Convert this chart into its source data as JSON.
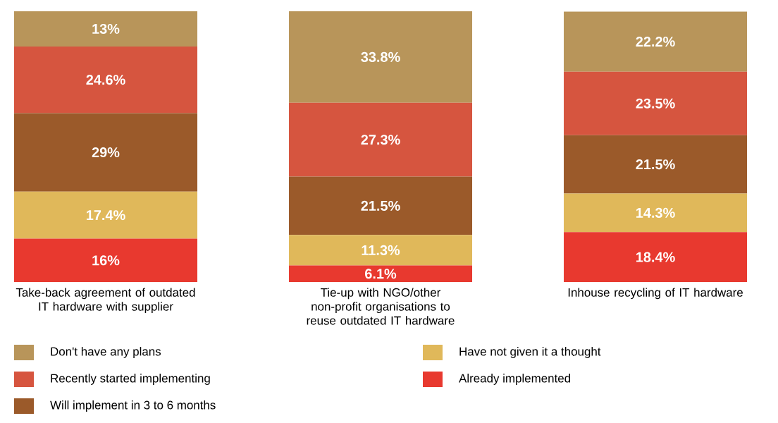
{
  "chart_data": {
    "type": "bar",
    "stacked": true,
    "categories": [
      "Take-back agreement of outdated IT hardware with supplier",
      "Tie-up with NGO/other non-profit organisations to reuse outdated IT hardware",
      "Inhouse recycling of IT hardware"
    ],
    "ylim": [
      0,
      100
    ],
    "legend": "bottom",
    "series": [
      {
        "name": "Already implemented",
        "color": "#e8392f",
        "values": [
          16,
          6.1,
          18.4
        ],
        "value_labels": [
          "16%",
          "6.1%",
          "18.4%"
        ]
      },
      {
        "name": "Have not given it a thought",
        "color": "#e0b85a",
        "values": [
          17.4,
          11.3,
          14.3
        ],
        "value_labels": [
          "17.4%",
          "11.3%",
          "14.3%"
        ]
      },
      {
        "name": "Will implement in 3 to 6 months",
        "color": "#9b5a2a",
        "values": [
          29,
          21.5,
          21.5
        ],
        "value_labels": [
          "29%",
          "21.5%",
          "21.5%"
        ]
      },
      {
        "name": "Recently started implementing",
        "color": "#d6553f",
        "values": [
          24.6,
          27.3,
          23.5
        ],
        "value_labels": [
          "24.6%",
          "27.3%",
          "23.5%"
        ]
      },
      {
        "name": "Don't have any plans",
        "color": "#b8955a",
        "values": [
          13,
          33.8,
          22.2
        ],
        "value_labels": [
          "13%",
          "33.8%",
          "22.2%"
        ]
      }
    ]
  }
}
